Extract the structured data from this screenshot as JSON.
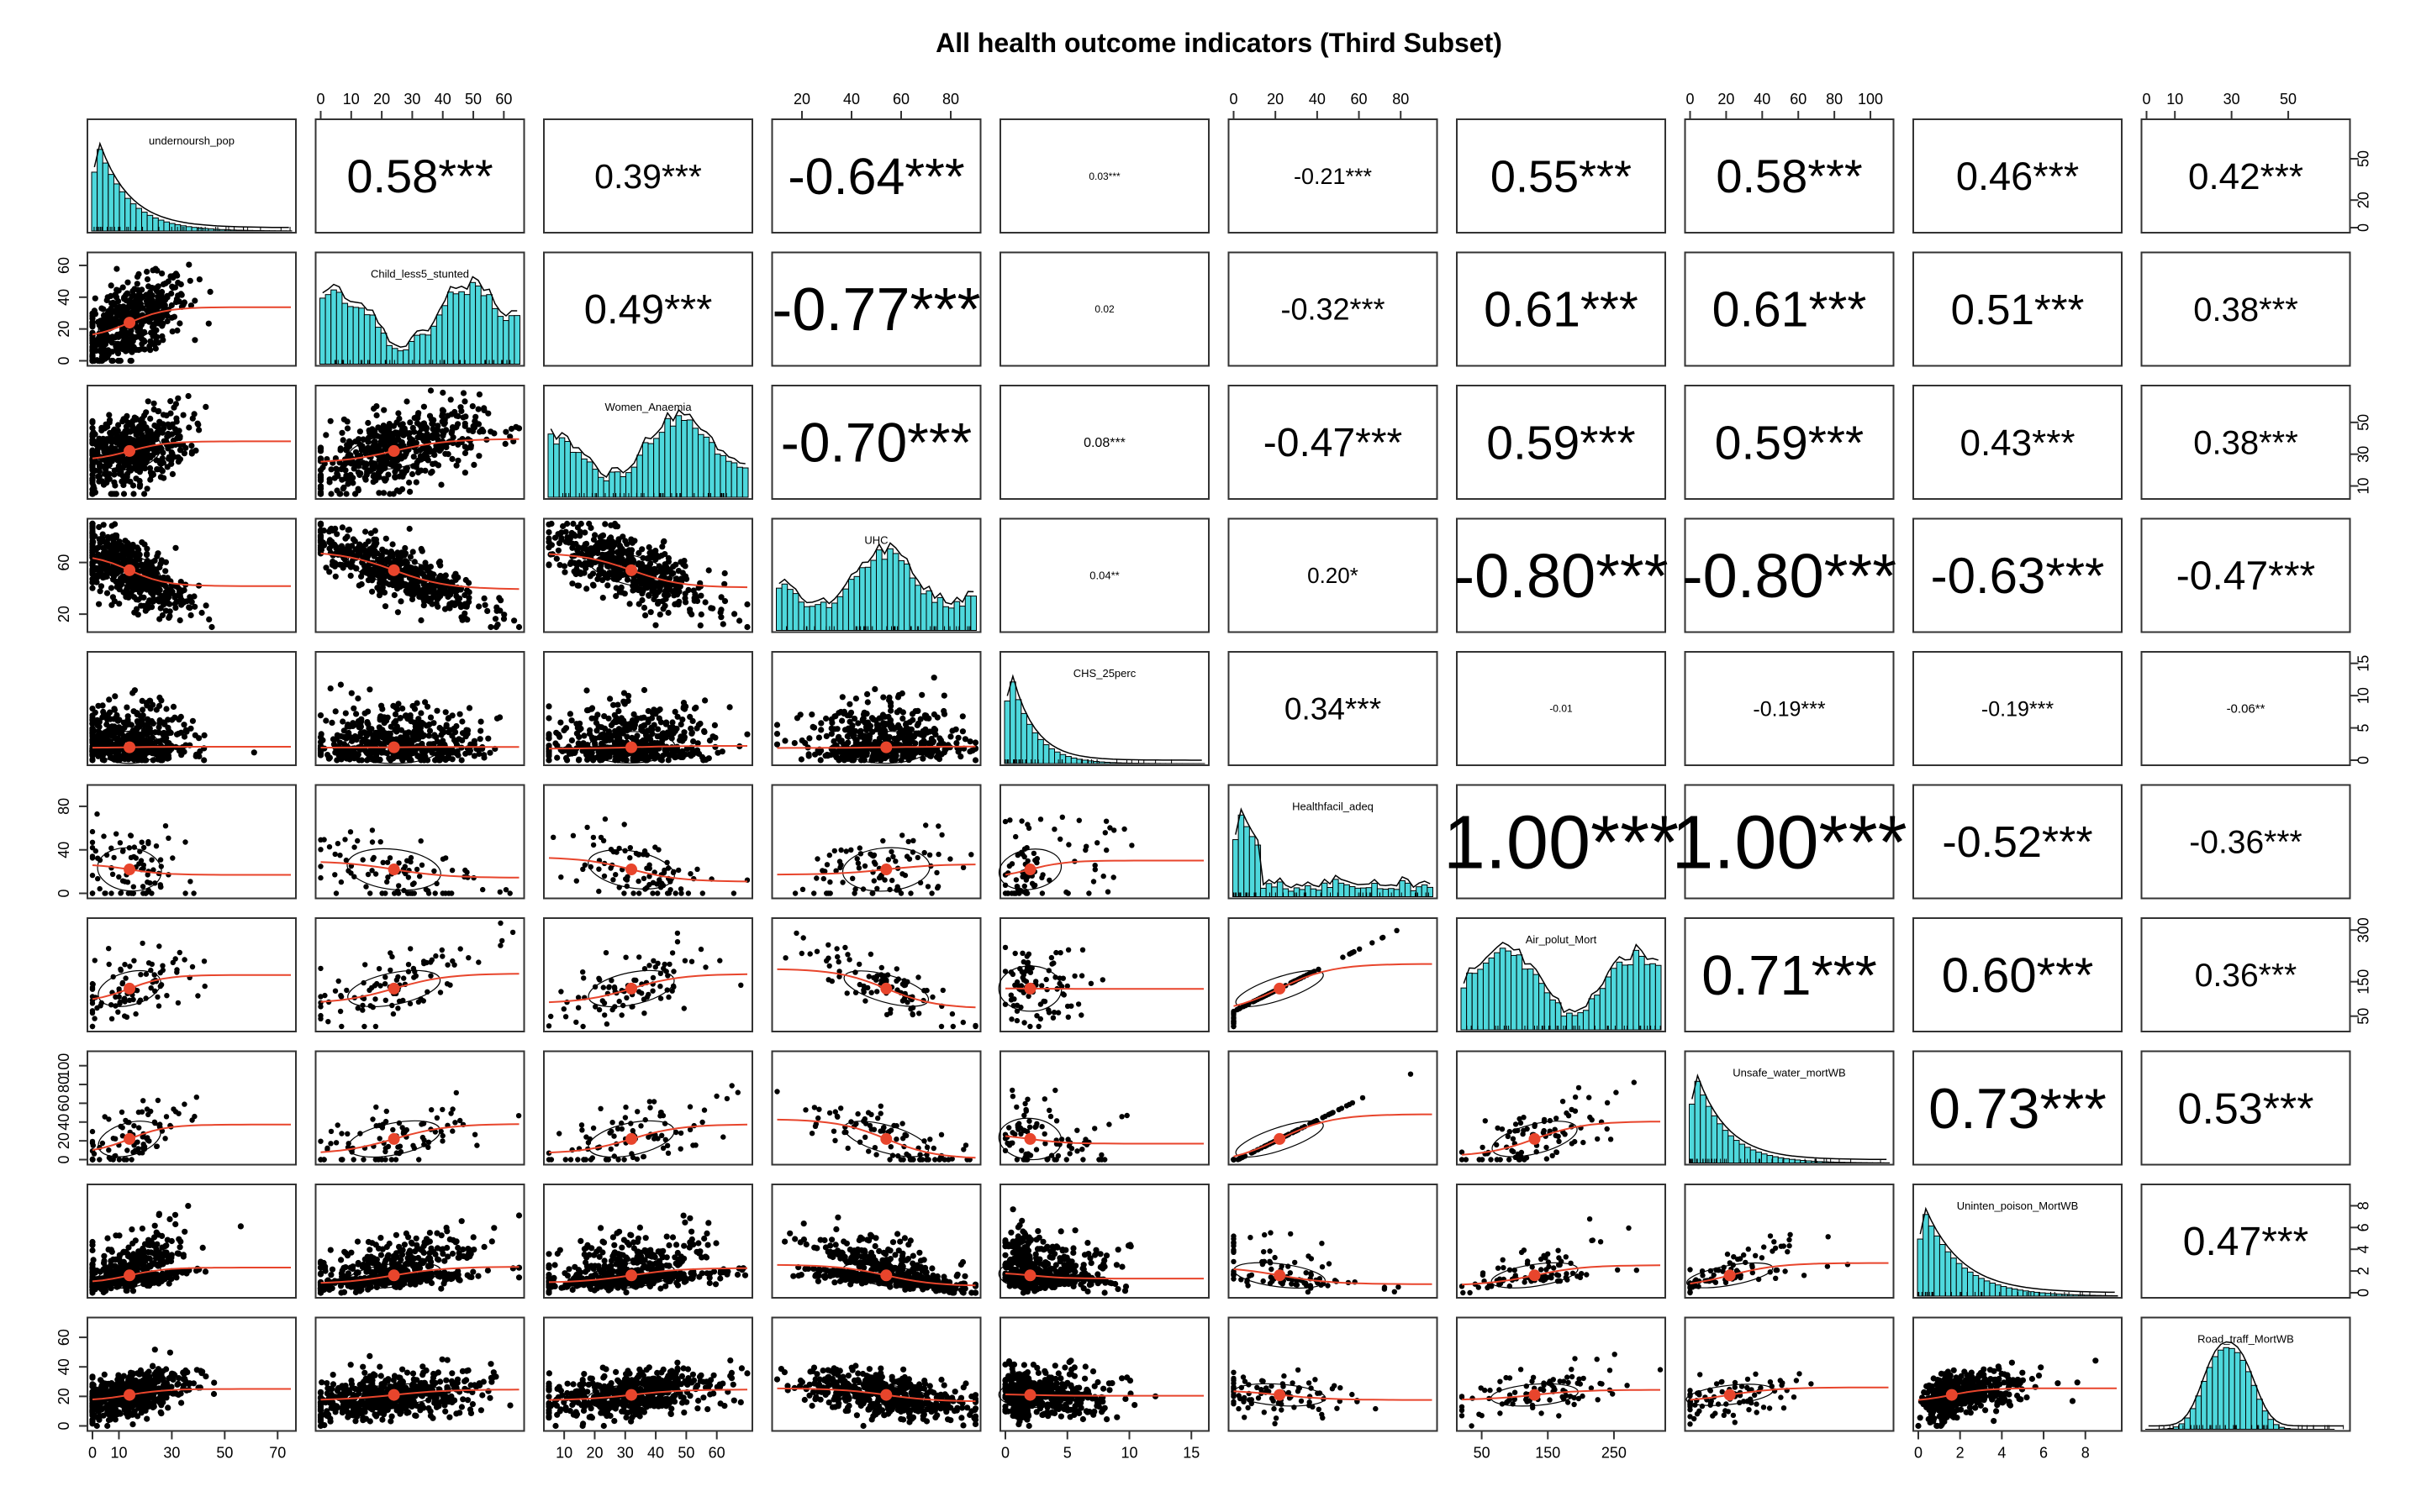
{
  "chart_data": {
    "type": "scatter",
    "title": "All health outcome indicators (Third Subset)",
    "variables": [
      "undernoursh_pop",
      "Child_less5_stunted",
      "Women_Anaemia",
      "UHC",
      "CHS_25perc",
      "Healthfacil_adeq",
      "Air_polut_Mort",
      "Unsafe_water_mortWB",
      "Uninten_poison_MortWB",
      "Road_traff_MortWB"
    ],
    "ranges": [
      [
        0,
        75
      ],
      [
        0,
        65
      ],
      [
        5,
        70
      ],
      [
        10,
        90
      ],
      [
        0,
        16
      ],
      [
        0,
        95
      ],
      [
        20,
        320
      ],
      [
        0,
        110
      ],
      [
        0,
        9.5
      ],
      [
        0,
        70
      ]
    ],
    "means": [
      14,
      24,
      32,
      54,
      2,
      22,
      130,
      22,
      1.6,
      21
    ],
    "sds": [
      11,
      14,
      13,
      16,
      2.3,
      20,
      60,
      22,
      1.3,
      8
    ],
    "correlations": [
      {
        "row": 1,
        "col": 2,
        "label": "0.58***",
        "r": 0.58
      },
      {
        "row": 1,
        "col": 3,
        "label": "0.39***",
        "r": 0.39
      },
      {
        "row": 1,
        "col": 4,
        "label": "-0.64***",
        "r": -0.64
      },
      {
        "row": 1,
        "col": 5,
        "label": "0.03***",
        "r": 0.03
      },
      {
        "row": 1,
        "col": 6,
        "label": "-0.21***",
        "r": -0.21
      },
      {
        "row": 1,
        "col": 7,
        "label": "0.55***",
        "r": 0.55
      },
      {
        "row": 1,
        "col": 8,
        "label": "0.58***",
        "r": 0.58
      },
      {
        "row": 1,
        "col": 9,
        "label": "0.46***",
        "r": 0.46
      },
      {
        "row": 1,
        "col": 10,
        "label": "0.42***",
        "r": 0.42
      },
      {
        "row": 2,
        "col": 3,
        "label": "0.49***",
        "r": 0.49
      },
      {
        "row": 2,
        "col": 4,
        "label": "-0.77***",
        "r": -0.77
      },
      {
        "row": 2,
        "col": 5,
        "label": "0.02",
        "r": 0.02
      },
      {
        "row": 2,
        "col": 6,
        "label": "-0.32***",
        "r": -0.32
      },
      {
        "row": 2,
        "col": 7,
        "label": "0.61***",
        "r": 0.61
      },
      {
        "row": 2,
        "col": 8,
        "label": "0.61***",
        "r": 0.61
      },
      {
        "row": 2,
        "col": 9,
        "label": "0.51***",
        "r": 0.51
      },
      {
        "row": 2,
        "col": 10,
        "label": "0.38***",
        "r": 0.38
      },
      {
        "row": 3,
        "col": 4,
        "label": "-0.70***",
        "r": -0.7
      },
      {
        "row": 3,
        "col": 5,
        "label": "0.08***",
        "r": 0.08
      },
      {
        "row": 3,
        "col": 6,
        "label": "-0.47***",
        "r": -0.47
      },
      {
        "row": 3,
        "col": 7,
        "label": "0.59***",
        "r": 0.59
      },
      {
        "row": 3,
        "col": 8,
        "label": "0.59***",
        "r": 0.59
      },
      {
        "row": 3,
        "col": 9,
        "label": "0.43***",
        "r": 0.43
      },
      {
        "row": 3,
        "col": 10,
        "label": "0.38***",
        "r": 0.38
      },
      {
        "row": 4,
        "col": 5,
        "label": "0.04**",
        "r": 0.04
      },
      {
        "row": 4,
        "col": 6,
        "label": "0.20*",
        "r": 0.2
      },
      {
        "row": 4,
        "col": 7,
        "label": "-0.80***",
        "r": -0.8
      },
      {
        "row": 4,
        "col": 8,
        "label": "-0.80***",
        "r": -0.8
      },
      {
        "row": 4,
        "col": 9,
        "label": "-0.63***",
        "r": -0.63
      },
      {
        "row": 4,
        "col": 10,
        "label": "-0.47***",
        "r": -0.47
      },
      {
        "row": 5,
        "col": 6,
        "label": "0.34***",
        "r": 0.34
      },
      {
        "row": 5,
        "col": 7,
        "label": "-0.01",
        "r": -0.01
      },
      {
        "row": 5,
        "col": 8,
        "label": "-0.19***",
        "r": -0.19
      },
      {
        "row": 5,
        "col": 9,
        "label": "-0.19***",
        "r": -0.19
      },
      {
        "row": 5,
        "col": 10,
        "label": "-0.06**",
        "r": -0.06
      },
      {
        "row": 6,
        "col": 7,
        "label": "1.00***",
        "r": 1.0
      },
      {
        "row": 6,
        "col": 8,
        "label": "1.00***",
        "r": 1.0
      },
      {
        "row": 6,
        "col": 9,
        "label": "-0.52***",
        "r": -0.52
      },
      {
        "row": 6,
        "col": 10,
        "label": "-0.36***",
        "r": -0.36
      },
      {
        "row": 7,
        "col": 8,
        "label": "0.71***",
        "r": 0.71
      },
      {
        "row": 7,
        "col": 9,
        "label": "0.60***",
        "r": 0.6
      },
      {
        "row": 7,
        "col": 10,
        "label": "0.36***",
        "r": 0.36
      },
      {
        "row": 8,
        "col": 9,
        "label": "0.73***",
        "r": 0.73
      },
      {
        "row": 8,
        "col": 10,
        "label": "0.53***",
        "r": 0.53
      },
      {
        "row": 9,
        "col": 10,
        "label": "0.47***",
        "r": 0.47
      }
    ],
    "axis_ticks": {
      "top": [
        {
          "col": 2,
          "ticks": [
            "0",
            "10",
            "20",
            "30",
            "40",
            "50",
            "60"
          ],
          "values": [
            0,
            10,
            20,
            30,
            40,
            50,
            60
          ]
        },
        {
          "col": 4,
          "ticks": [
            "20",
            "40",
            "60",
            "80"
          ],
          "values": [
            20,
            40,
            60,
            80
          ]
        },
        {
          "col": 6,
          "ticks": [
            "0",
            "20",
            "40",
            "60",
            "80"
          ],
          "values": [
            0,
            20,
            40,
            60,
            80
          ]
        },
        {
          "col": 8,
          "ticks": [
            "0",
            "20",
            "40",
            "60",
            "80",
            "100"
          ],
          "values": [
            0,
            20,
            40,
            60,
            80,
            100
          ]
        },
        {
          "col": 10,
          "ticks": [
            "0",
            "10",
            "30",
            "50"
          ],
          "values": [
            0,
            10,
            30,
            50
          ]
        }
      ],
      "bottom": [
        {
          "col": 1,
          "ticks": [
            "0",
            "10",
            "30",
            "50",
            "70"
          ],
          "values": [
            0,
            10,
            30,
            50,
            70
          ]
        },
        {
          "col": 3,
          "ticks": [
            "10",
            "20",
            "30",
            "40",
            "50",
            "60"
          ],
          "values": [
            10,
            20,
            30,
            40,
            50,
            60
          ]
        },
        {
          "col": 5,
          "ticks": [
            "0",
            "5",
            "10",
            "15"
          ],
          "values": [
            0,
            5,
            10,
            15
          ]
        },
        {
          "col": 7,
          "ticks": [
            "50",
            "150",
            "250"
          ],
          "values": [
            50,
            150,
            250
          ]
        },
        {
          "col": 9,
          "ticks": [
            "0",
            "2",
            "4",
            "6",
            "8"
          ],
          "values": [
            0,
            2,
            4,
            6,
            8
          ]
        }
      ],
      "left": [
        {
          "row": 2,
          "ticks": [
            "0",
            "20",
            "40",
            "60"
          ],
          "values": [
            0,
            20,
            40,
            60
          ]
        },
        {
          "row": 4,
          "ticks": [
            "20",
            "60"
          ],
          "values": [
            20,
            60
          ]
        },
        {
          "row": 6,
          "ticks": [
            "0",
            "40",
            "80"
          ],
          "values": [
            0,
            40,
            80
          ]
        },
        {
          "row": 8,
          "ticks": [
            "0",
            "20",
            "40",
            "60",
            "80",
            "100"
          ],
          "values": [
            0,
            20,
            40,
            60,
            80,
            100
          ]
        },
        {
          "row": 10,
          "ticks": [
            "0",
            "20",
            "40",
            "60"
          ],
          "values": [
            0,
            20,
            40,
            60
          ]
        }
      ],
      "right": [
        {
          "row": 1,
          "ticks": [
            "0",
            "20",
            "50"
          ],
          "values": [
            0,
            20,
            50
          ]
        },
        {
          "row": 3,
          "ticks": [
            "10",
            "30",
            "50"
          ],
          "values": [
            10,
            30,
            50
          ]
        },
        {
          "row": 5,
          "ticks": [
            "0",
            "5",
            "10",
            "15"
          ],
          "values": [
            0,
            5,
            10,
            15
          ]
        },
        {
          "row": 7,
          "ticks": [
            "50",
            "150",
            "300"
          ],
          "values": [
            50,
            150,
            300
          ]
        },
        {
          "row": 9,
          "ticks": [
            "0",
            "2",
            "4",
            "6",
            "8"
          ],
          "values": [
            0,
            2,
            4,
            6,
            8
          ]
        }
      ]
    },
    "colors": {
      "histogram_fill": "#4ed8dc",
      "scatter_points": "#000000",
      "smooth_line": "#e8452c",
      "regression_line": "#000000",
      "mean_point": "#e8452c",
      "density_line": "#000000"
    },
    "grid": false
  }
}
